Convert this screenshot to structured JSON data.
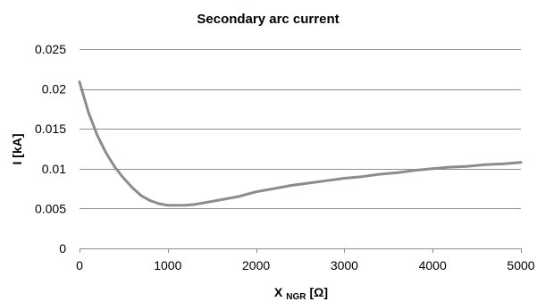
{
  "chart_data": {
    "type": "line",
    "title": "Secondary arc current",
    "xlabel": {
      "main": "X",
      "subscript": "NGR",
      "unit": "[Ω]"
    },
    "ylabel": "I [kA]",
    "xlim": [
      0,
      5000
    ],
    "ylim": [
      0,
      0.025
    ],
    "x_ticks": [
      0,
      1000,
      2000,
      3000,
      4000,
      5000
    ],
    "x_tick_labels": [
      "0",
      "1000",
      "2000",
      "3000",
      "4000",
      "5000"
    ],
    "y_ticks": [
      0,
      0.005,
      0.01,
      0.015,
      0.02,
      0.025
    ],
    "y_tick_labels": [
      "0",
      "0.005",
      "0.01",
      "0.015",
      "0.02",
      "0.025"
    ],
    "grid": {
      "horizontal": true,
      "vertical": false
    },
    "legend": "none",
    "series": [
      {
        "color": "#8c8c8c",
        "x": [
          0,
          100,
          200,
          300,
          400,
          500,
          600,
          700,
          800,
          900,
          1000,
          1100,
          1200,
          1300,
          1400,
          1500,
          1600,
          1700,
          1800,
          1900,
          2000,
          2200,
          2400,
          2600,
          2800,
          3000,
          3200,
          3400,
          3600,
          3800,
          4000,
          4200,
          4400,
          4600,
          4800,
          5000
        ],
        "y": [
          0.0209,
          0.0171,
          0.0142,
          0.012,
          0.0102,
          0.0088,
          0.0076,
          0.0066,
          0.006,
          0.0056,
          0.0054,
          0.0054,
          0.0054,
          0.0055,
          0.0057,
          0.0059,
          0.0061,
          0.0063,
          0.0065,
          0.0068,
          0.0071,
          0.0075,
          0.0079,
          0.0082,
          0.0085,
          0.0088,
          0.009,
          0.0093,
          0.0095,
          0.0098,
          0.01,
          0.0102,
          0.0103,
          0.0105,
          0.0106,
          0.0108
        ]
      }
    ]
  }
}
